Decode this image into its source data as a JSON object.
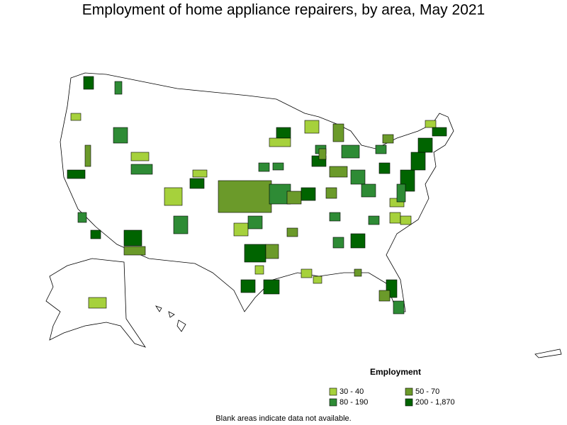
{
  "title": "Employment of home appliance repairers, by area, May 2021",
  "legend": {
    "title": "Employment",
    "items": [
      {
        "label": "30 - 40",
        "color": "#a6d13c"
      },
      {
        "label": "50 - 70",
        "color": "#6b9a2a"
      },
      {
        "label": "80 - 190",
        "color": "#2e8b35"
      },
      {
        "label": "200 - 1,870",
        "color": "#006400"
      }
    ]
  },
  "note": "Blank areas indicate data not available."
}
